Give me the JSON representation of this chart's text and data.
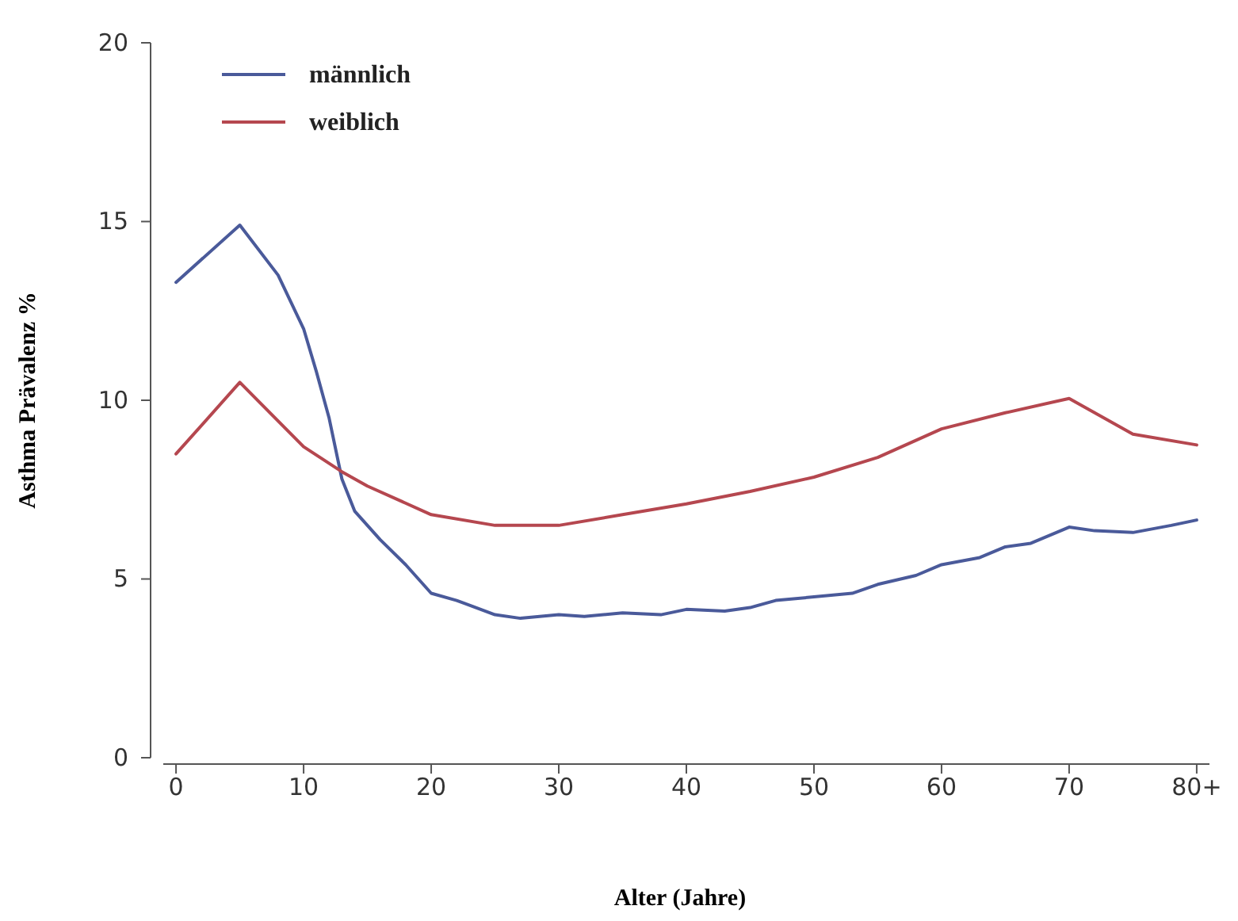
{
  "chart_data": {
    "type": "line",
    "xlabel": "Alter (Jahre)",
    "ylabel": "Asthma Prävalenz %",
    "xlim": [
      -1,
      81
    ],
    "xticks": [
      0,
      10,
      20,
      30,
      40,
      50,
      60,
      70,
      {
        "value": 80,
        "label": "80+"
      }
    ],
    "ylim": [
      0,
      20
    ],
    "yticks": [
      0,
      5,
      10,
      15,
      20
    ],
    "legend": "top left",
    "grid": false,
    "series": [
      {
        "name": "männlich",
        "color": "#4a5a9a",
        "x": [
          0,
          5,
          8,
          10,
          11,
          12,
          13,
          14,
          16,
          18,
          20,
          22,
          25,
          27,
          30,
          32,
          35,
          38,
          40,
          43,
          45,
          47,
          50,
          53,
          55,
          58,
          60,
          63,
          65,
          67,
          70,
          72,
          75,
          78,
          80
        ],
        "values": [
          13.3,
          14.9,
          13.5,
          12.0,
          10.8,
          9.5,
          7.8,
          6.9,
          6.1,
          5.4,
          4.6,
          4.4,
          4.0,
          3.9,
          4.0,
          3.95,
          4.05,
          4.0,
          4.15,
          4.1,
          4.2,
          4.4,
          4.5,
          4.6,
          4.85,
          5.1,
          5.4,
          5.6,
          5.9,
          6.0,
          6.45,
          6.35,
          6.3,
          6.5,
          6.65
        ]
      },
      {
        "name": "weiblich",
        "color": "#b5474f",
        "x": [
          0,
          5,
          10,
          13,
          15,
          20,
          25,
          30,
          35,
          40,
          45,
          50,
          55,
          60,
          65,
          70,
          75,
          80
        ],
        "values": [
          8.5,
          10.5,
          8.7,
          8.0,
          7.6,
          6.8,
          6.5,
          6.5,
          6.8,
          7.1,
          7.45,
          7.85,
          8.4,
          9.2,
          9.65,
          10.05,
          9.05,
          8.75
        ]
      }
    ]
  }
}
